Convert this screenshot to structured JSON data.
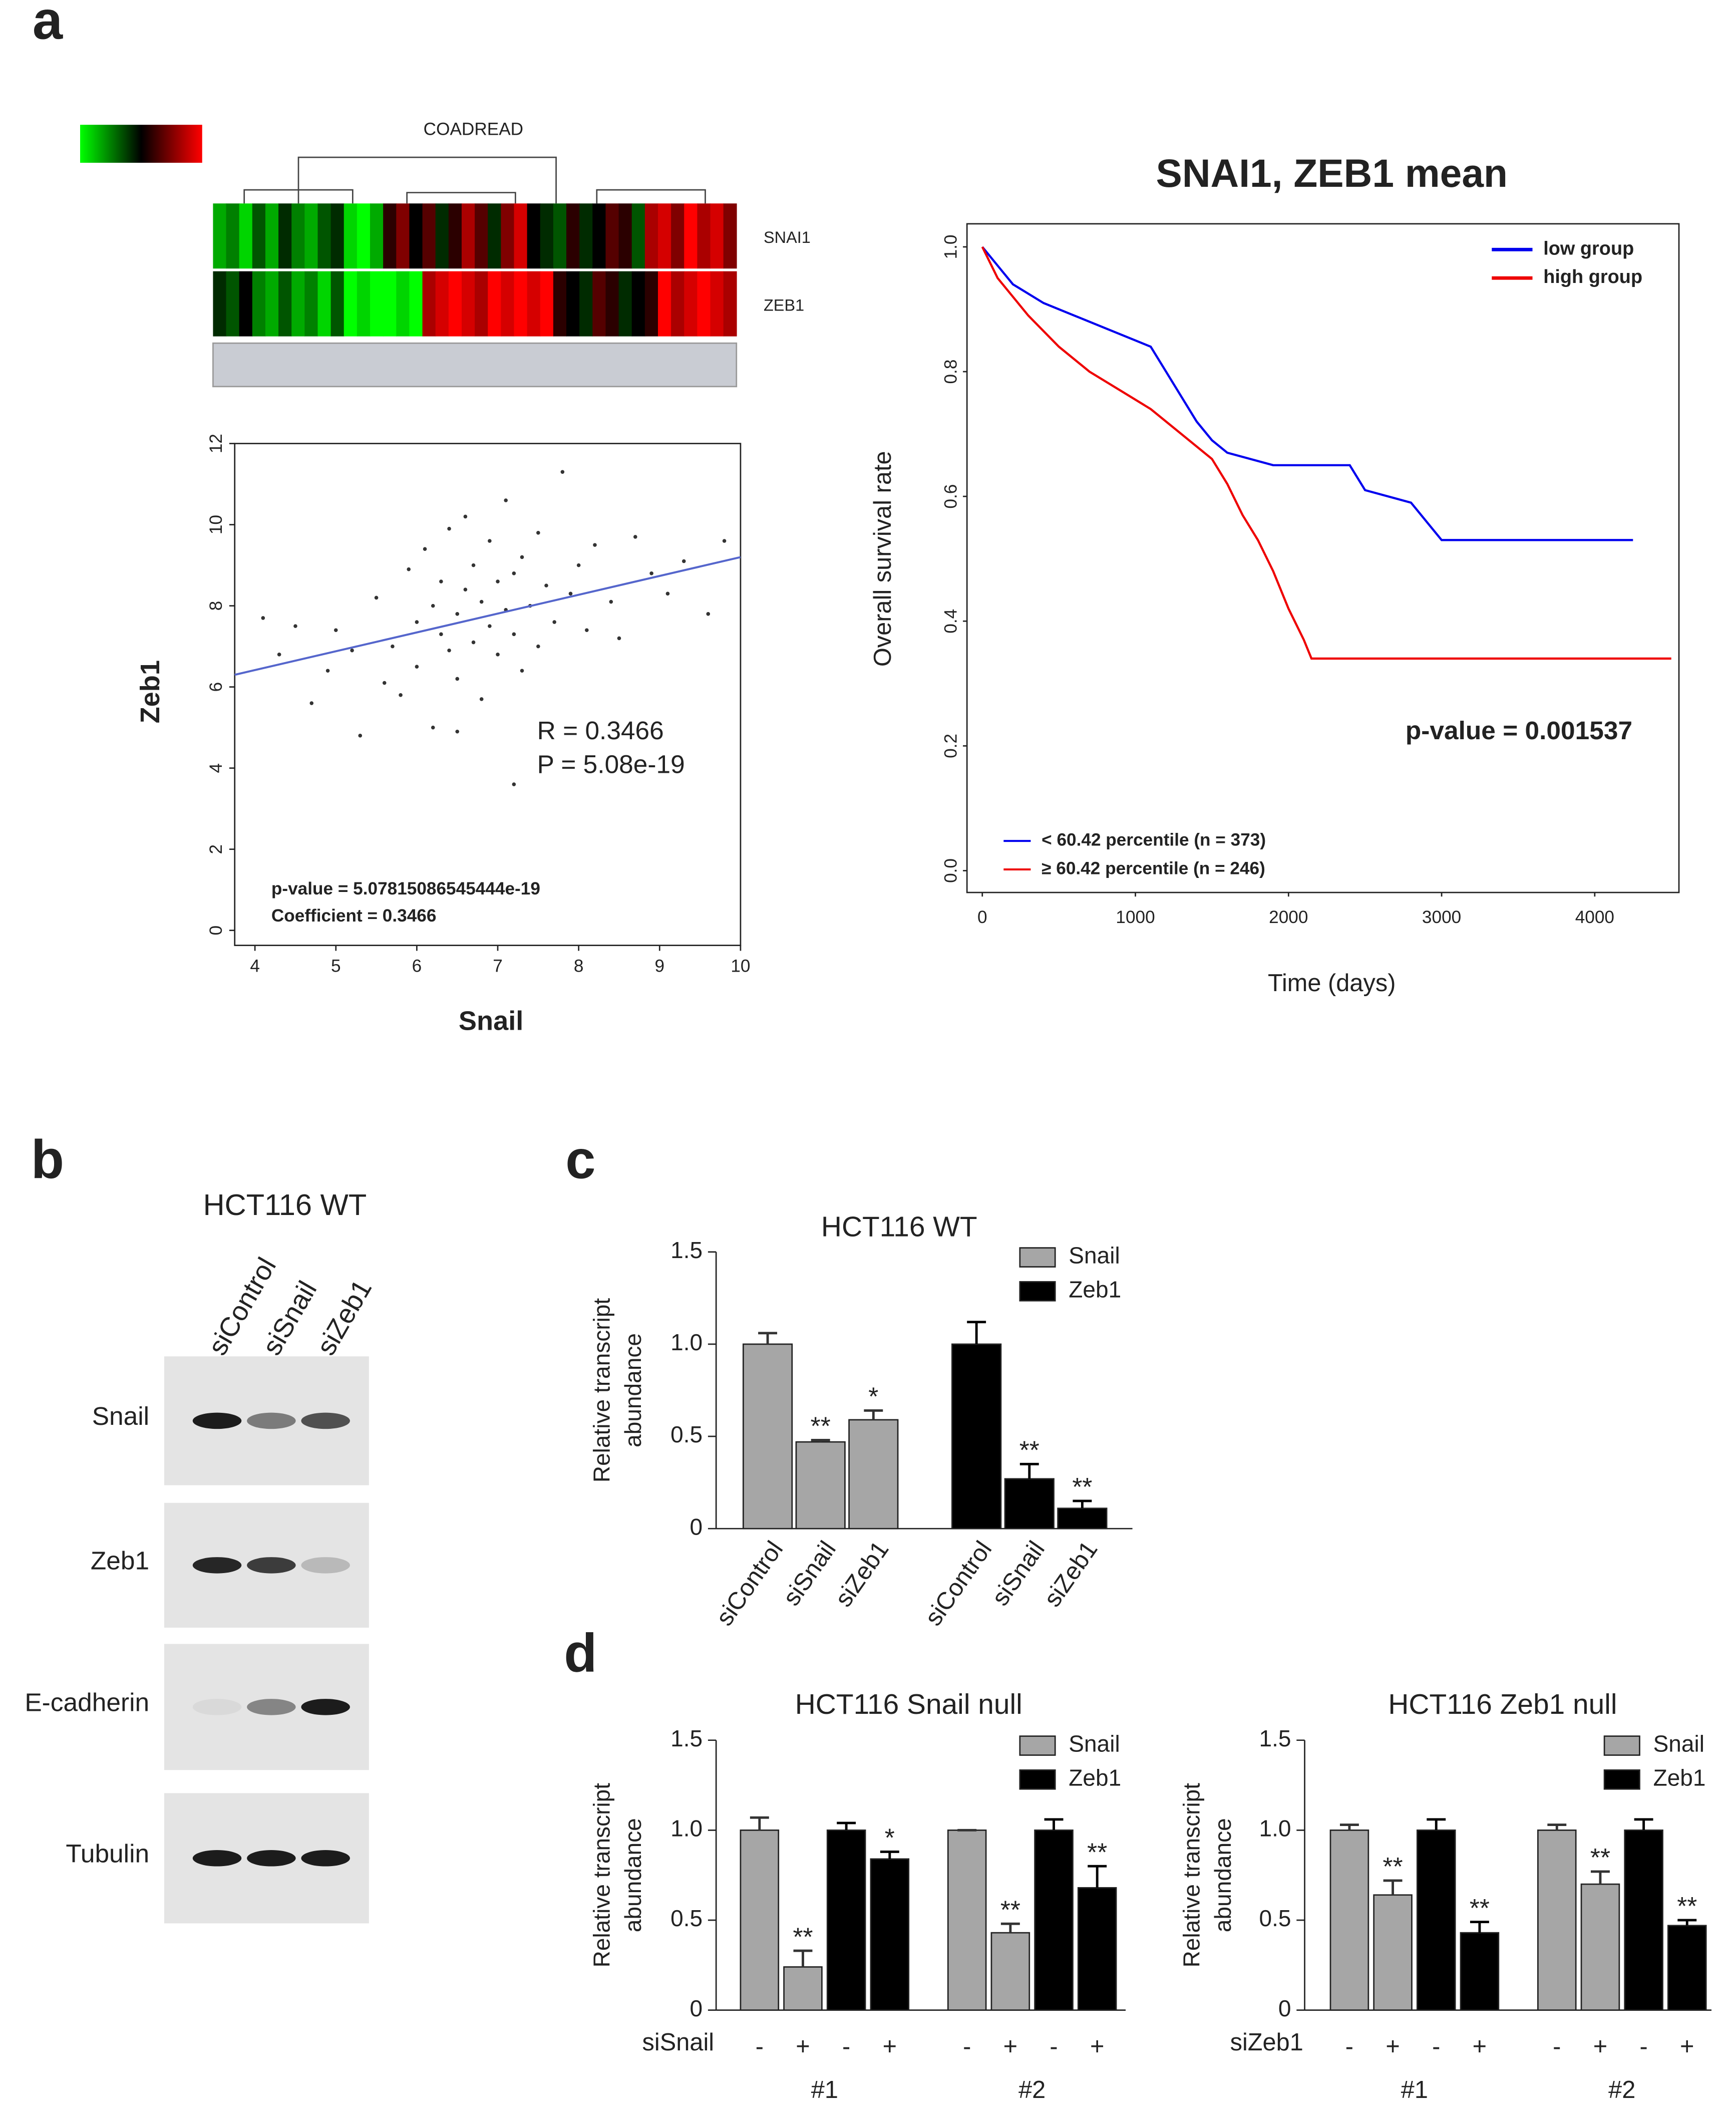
{
  "panels": [
    "a",
    "b",
    "c",
    "d"
  ],
  "blot": {
    "title": "HCT116 WT",
    "lanes": [
      "siControl",
      "siSnail",
      "siZeb1"
    ],
    "rows": [
      "Snail",
      "Zeb1",
      "E-cadherin",
      "Tubulin"
    ]
  },
  "chart_data": [
    {
      "type": "heatmap",
      "title": "COADREAD",
      "rows": [
        "SNAI1",
        "ZEB1"
      ],
      "zlim": [
        -3,
        3
      ],
      "values": [
        [
          -2,
          -1.5,
          -2.5,
          -1,
          -2,
          -0.5,
          -1.5,
          -2,
          -1,
          -0.5,
          -2.5,
          -3,
          -2,
          0.5,
          1.5,
          0,
          1,
          -0.5,
          0.5,
          2,
          1,
          -0.5,
          1.5,
          2.5,
          0,
          -0.5,
          -1,
          0.5,
          -0.5,
          0,
          1,
          0.5,
          -1,
          2,
          2.5,
          1.5,
          3,
          2,
          2.5,
          1.5
        ],
        [
          -0.5,
          -1,
          0,
          -1.5,
          -2,
          -1,
          -2,
          -1.5,
          -2.5,
          -1,
          -3,
          -2.5,
          -3,
          -3,
          -2.5,
          -3,
          2,
          2.5,
          3,
          2.5,
          2,
          3,
          2.5,
          3,
          2.5,
          3,
          0.5,
          0,
          -0.5,
          1,
          0.5,
          -0.5,
          0,
          0.5,
          3,
          2,
          2.5,
          3,
          2.5,
          2
        ]
      ]
    },
    {
      "type": "scatter",
      "x_label": "Snail",
      "y_label": "Zeb1",
      "xlim": [
        3.75,
        10
      ],
      "ylim": [
        -0.37,
        12
      ],
      "xticks": [
        4,
        5,
        6,
        7,
        8,
        9,
        10
      ],
      "yticks": [
        0,
        2,
        4,
        6,
        8,
        10,
        12
      ],
      "color": "#333333",
      "x": [
        4.1,
        4.3,
        4.5,
        4.7,
        4.9,
        5.0,
        5.2,
        5.3,
        5.5,
        5.6,
        5.7,
        5.8,
        5.9,
        6.0,
        6.0,
        6.1,
        6.2,
        6.2,
        6.3,
        6.3,
        6.4,
        6.4,
        6.5,
        6.5,
        6.6,
        6.6,
        6.7,
        6.7,
        6.8,
        6.8,
        6.9,
        6.9,
        7.0,
        7.0,
        7.1,
        7.1,
        7.2,
        7.2,
        7.3,
        7.3,
        7.4,
        7.5,
        7.5,
        7.6,
        7.7,
        7.8,
        7.9,
        8.0,
        8.1,
        8.2,
        8.4,
        8.5,
        8.7,
        8.9,
        9.1,
        9.3,
        9.6,
        9.8,
        6.5,
        7.2
      ],
      "values": [
        7.7,
        6.8,
        7.5,
        5.6,
        6.4,
        7.4,
        6.9,
        4.8,
        8.2,
        6.1,
        7.0,
        5.8,
        8.9,
        7.6,
        6.5,
        9.4,
        8.0,
        5.0,
        7.3,
        8.6,
        6.9,
        9.9,
        7.8,
        6.2,
        8.4,
        10.2,
        7.1,
        9.0,
        5.7,
        8.1,
        7.5,
        9.6,
        6.8,
        8.6,
        7.9,
        10.6,
        7.3,
        8.8,
        6.4,
        9.2,
        8.0,
        7.0,
        9.8,
        8.5,
        7.6,
        11.3,
        8.3,
        9.0,
        7.4,
        9.5,
        8.1,
        7.2,
        9.7,
        8.8,
        8.3,
        9.1,
        7.8,
        9.6,
        4.9,
        3.6
      ],
      "fit_line": {
        "x": [
          3.75,
          10
        ],
        "y": [
          6.3,
          9.2
        ],
        "color": "#5566cc"
      },
      "annotations": [
        "R = 0.3466",
        "P = 5.08e-19",
        "p-value = 5.07815086545444e-19",
        "Coefficient = 0.3466"
      ]
    },
    {
      "type": "line",
      "title": "SNAI1, ZEB1 mean",
      "x_label": "Time (days)",
      "y_label": "Overall survival rate",
      "xlim": [
        -100,
        4550
      ],
      "ylim": [
        -0.035,
        1.037
      ],
      "xticks": [
        0,
        1000,
        2000,
        3000,
        4000
      ],
      "yticks": [
        {
          "value": 0,
          "label": "0.0"
        },
        0.2,
        0.4,
        0.6,
        0.8,
        {
          "value": 1,
          "label": "1.0"
        }
      ],
      "legend": "upper right",
      "series": [
        {
          "name": "low group",
          "color": "#0000ee",
          "x": [
            0,
            100,
            200,
            400,
            600,
            800,
            1000,
            1100,
            1200,
            1300,
            1400,
            1500,
            1600,
            1900,
            2400,
            2500,
            2800,
            2900,
            3000,
            4250
          ],
          "values": [
            1,
            0.97,
            0.94,
            0.91,
            0.89,
            0.87,
            0.85,
            0.84,
            0.8,
            0.76,
            0.72,
            0.69,
            0.67,
            0.65,
            0.65,
            0.61,
            0.59,
            0.56,
            0.53,
            0.53
          ]
        },
        {
          "name": "high group",
          "color": "#ee0000",
          "x": [
            0,
            100,
            300,
            500,
            700,
            900,
            1100,
            1300,
            1500,
            1600,
            1700,
            1800,
            1900,
            2000,
            2100,
            2150,
            4500
          ],
          "values": [
            1,
            0.95,
            0.89,
            0.84,
            0.8,
            0.77,
            0.74,
            0.7,
            0.66,
            0.62,
            0.57,
            0.53,
            0.48,
            0.42,
            0.37,
            0.34,
            0.34
          ]
        }
      ],
      "annotations": [
        "p-value = 0.001537",
        "< 60.42 percentile (n = 373)",
        "≥ 60.42 percentile (n = 246)"
      ]
    },
    {
      "type": "bar",
      "title": "HCT116 WT",
      "y_label": [
        "Relative transcript",
        "abundance"
      ],
      "ylim": [
        0,
        1.5
      ],
      "yticks": [
        0,
        0.5,
        {
          "value": 1,
          "label": "1.0"
        },
        1.5
      ],
      "categories": [
        "siControl",
        "siSnail",
        "siZeb1",
        "siControl",
        "siSnail",
        "siZeb1"
      ],
      "series": [
        {
          "name": "Snail",
          "color": "#a6a6a6",
          "values": [
            1.0,
            0.47,
            0.59,
            null,
            null,
            null
          ],
          "errors": [
            0.06,
            0.01,
            0.05,
            null,
            null,
            null
          ],
          "significance": [
            null,
            "**",
            "*",
            null,
            null,
            null
          ]
        },
        {
          "name": "Zeb1",
          "color": "#000000",
          "values": [
            null,
            null,
            null,
            1.0,
            0.27,
            0.11
          ],
          "errors": [
            null,
            null,
            null,
            0.12,
            0.08,
            0.04
          ],
          "significance": [
            null,
            null,
            null,
            null,
            "**",
            "**"
          ]
        }
      ]
    },
    {
      "type": "bar",
      "title": "HCT116 Snail null",
      "y_label": [
        "Relative transcript",
        "abundance"
      ],
      "ylim": [
        0,
        1.5
      ],
      "yticks": [
        0,
        0.5,
        {
          "value": 1,
          "label": "1.0"
        },
        1.5
      ],
      "treatment": "siSnail",
      "categories": [
        "-",
        "+",
        "-",
        "+",
        "-",
        "+",
        "-",
        "+"
      ],
      "groups": [
        "#1",
        "#2"
      ],
      "series": [
        {
          "name": "Snail",
          "color": "#a6a6a6",
          "values": [
            1.0,
            0.24,
            null,
            null,
            1.0,
            0.43,
            null,
            null
          ],
          "errors": [
            0.07,
            0.09,
            null,
            null,
            0.0,
            0.05,
            null,
            null
          ],
          "significance": [
            null,
            "**",
            null,
            null,
            null,
            "**",
            null,
            null
          ]
        },
        {
          "name": "Zeb1",
          "color": "#000000",
          "values": [
            null,
            null,
            1.0,
            0.84,
            null,
            null,
            1.0,
            0.68
          ],
          "errors": [
            null,
            null,
            0.04,
            0.04,
            null,
            null,
            0.06,
            0.12
          ],
          "significance": [
            null,
            null,
            null,
            "*",
            null,
            null,
            null,
            "**"
          ]
        }
      ]
    },
    {
      "type": "bar",
      "title": "HCT116 Zeb1 null",
      "y_label": [
        "Relative transcript",
        "abundance"
      ],
      "ylim": [
        0,
        1.5
      ],
      "yticks": [
        0,
        0.5,
        {
          "value": 1,
          "label": "1.0"
        },
        1.5
      ],
      "treatment": "siZeb1",
      "categories": [
        "-",
        "+",
        "-",
        "+",
        "-",
        "+",
        "-",
        "+"
      ],
      "groups": [
        "#1",
        "#2"
      ],
      "series": [
        {
          "name": "Snail",
          "color": "#a6a6a6",
          "values": [
            1.0,
            0.64,
            null,
            null,
            1.0,
            0.7,
            null,
            null
          ],
          "errors": [
            0.03,
            0.08,
            null,
            null,
            0.03,
            0.07,
            null,
            null
          ],
          "significance": [
            null,
            "**",
            null,
            null,
            null,
            "**",
            null,
            null
          ]
        },
        {
          "name": "Zeb1",
          "color": "#000000",
          "values": [
            null,
            null,
            1.0,
            0.43,
            null,
            null,
            1.0,
            0.47
          ],
          "errors": [
            null,
            null,
            0.06,
            0.06,
            null,
            null,
            0.06,
            0.03
          ],
          "significance": [
            null,
            null,
            null,
            "**",
            null,
            null,
            null,
            "**"
          ]
        }
      ]
    }
  ]
}
